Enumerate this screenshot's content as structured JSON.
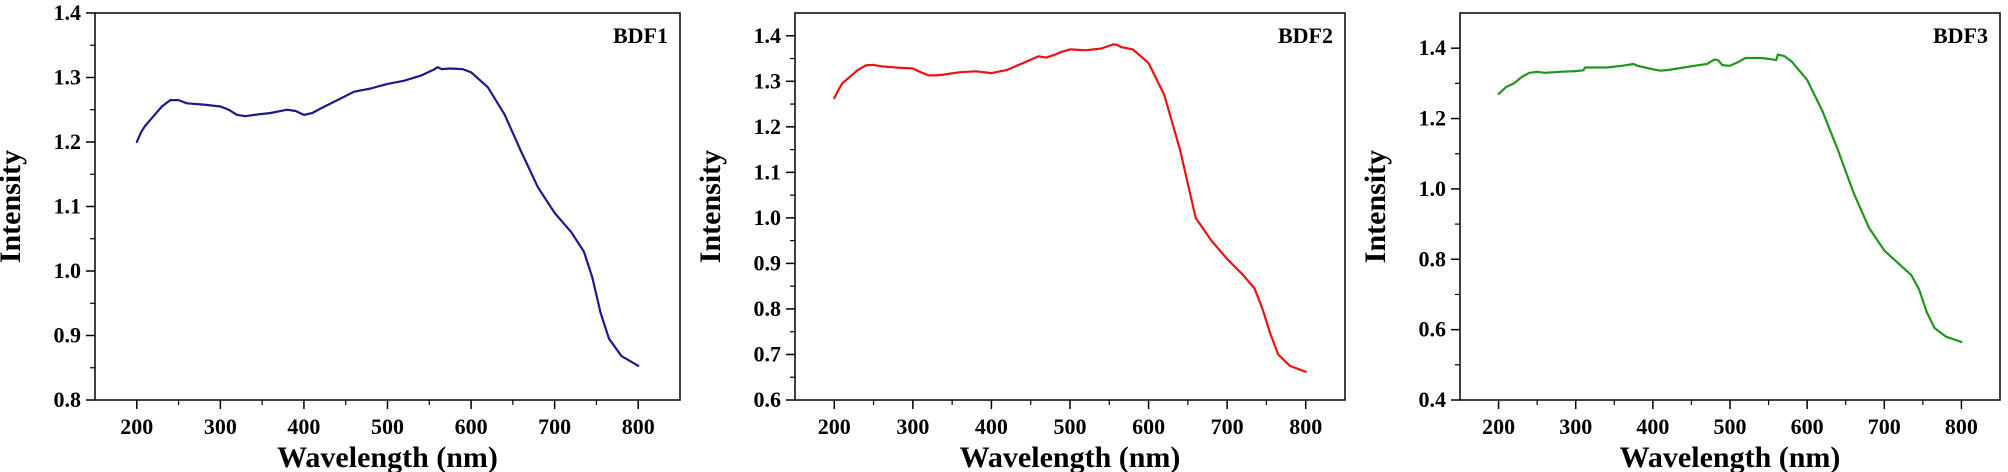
{
  "chart_data": [
    {
      "type": "line",
      "title": "",
      "legend": "BDF1",
      "xlabel": "Wavelength (nm)",
      "ylabel": "Intensity",
      "xlim": [
        150,
        850
      ],
      "ylim": [
        0.8,
        1.4
      ],
      "xticks": [
        200,
        300,
        400,
        500,
        600,
        700,
        800
      ],
      "yticks": [
        0.8,
        0.9,
        1.0,
        1.1,
        1.2,
        1.3,
        1.4
      ],
      "x_tick_labels": [
        "200",
        "300",
        "400",
        "500",
        "600",
        "700",
        "800"
      ],
      "y_tick_labels": [
        "0.8",
        "0.9",
        "1.0",
        "1.1",
        "1.2",
        "1.3",
        "1.4"
      ],
      "grid": false,
      "color": "#1a1a8c",
      "series": [
        {
          "x": [
            200,
            205,
            210,
            220,
            230,
            240,
            250,
            260,
            280,
            300,
            310,
            320,
            330,
            340,
            360,
            380,
            390,
            400,
            410,
            420,
            440,
            460,
            480,
            500,
            520,
            540,
            555,
            560,
            565,
            575,
            590,
            600,
            620,
            640,
            660,
            680,
            700,
            720,
            735,
            745,
            755,
            765,
            780,
            800
          ],
          "y": [
            1.2,
            1.215,
            1.225,
            1.24,
            1.255,
            1.265,
            1.265,
            1.26,
            1.258,
            1.255,
            1.25,
            1.242,
            1.24,
            1.242,
            1.245,
            1.25,
            1.248,
            1.242,
            1.245,
            1.252,
            1.265,
            1.278,
            1.283,
            1.29,
            1.295,
            1.303,
            1.312,
            1.316,
            1.313,
            1.314,
            1.313,
            1.308,
            1.285,
            1.243,
            1.185,
            1.13,
            1.09,
            1.06,
            1.03,
            0.99,
            0.935,
            0.895,
            0.868,
            0.853
          ]
        }
      ]
    },
    {
      "type": "line",
      "title": "",
      "legend": "BDF2",
      "xlabel": "Wavelength (nm)",
      "ylabel": "Intensity",
      "xlim": [
        150,
        850
      ],
      "ylim": [
        0.6,
        1.45
      ],
      "xticks": [
        200,
        300,
        400,
        500,
        600,
        700,
        800
      ],
      "yticks": [
        0.6,
        0.7,
        0.8,
        0.9,
        1.0,
        1.1,
        1.2,
        1.3,
        1.4
      ],
      "x_tick_labels": [
        "200",
        "300",
        "400",
        "500",
        "600",
        "700",
        "800"
      ],
      "y_tick_labels": [
        "0.6",
        "0.7",
        "0.8",
        "0.9",
        "1.0",
        "1.1",
        "1.2",
        "1.3",
        "1.4"
      ],
      "grid": false,
      "color": "#ee1111",
      "series": [
        {
          "x": [
            200,
            205,
            210,
            220,
            230,
            240,
            250,
            260,
            280,
            300,
            310,
            320,
            330,
            340,
            360,
            380,
            400,
            420,
            440,
            460,
            470,
            480,
            490,
            500,
            520,
            540,
            555,
            560,
            565,
            580,
            600,
            620,
            640,
            660,
            680,
            700,
            720,
            735,
            745,
            755,
            765,
            780,
            800
          ],
          "y": [
            1.263,
            1.28,
            1.295,
            1.31,
            1.325,
            1.335,
            1.336,
            1.333,
            1.33,
            1.328,
            1.32,
            1.313,
            1.313,
            1.315,
            1.32,
            1.322,
            1.318,
            1.325,
            1.34,
            1.355,
            1.352,
            1.358,
            1.365,
            1.37,
            1.368,
            1.372,
            1.381,
            1.38,
            1.375,
            1.37,
            1.34,
            1.27,
            1.15,
            1.0,
            0.95,
            0.91,
            0.875,
            0.845,
            0.8,
            0.745,
            0.7,
            0.675,
            0.662
          ]
        }
      ]
    },
    {
      "type": "line",
      "title": "",
      "legend": "BDF3",
      "xlabel": "Wavelength (nm)",
      "ylabel": "Intensity",
      "xlim": [
        150,
        850
      ],
      "ylim": [
        0.4,
        1.5
      ],
      "xticks": [
        200,
        300,
        400,
        500,
        600,
        700,
        800
      ],
      "yticks": [
        0.4,
        0.6,
        0.8,
        1.0,
        1.2,
        1.4
      ],
      "x_tick_labels": [
        "200",
        "300",
        "400",
        "500",
        "600",
        "700",
        "800"
      ],
      "y_tick_labels": [
        "0.4",
        "0.6",
        "0.8",
        "1.0",
        "1.2",
        "1.4"
      ],
      "grid": false,
      "color": "#1e961e",
      "series": [
        {
          "x": [
            200,
            205,
            210,
            220,
            230,
            240,
            250,
            260,
            280,
            300,
            310,
            312,
            320,
            340,
            360,
            375,
            380,
            390,
            400,
            410,
            420,
            440,
            460,
            470,
            480,
            485,
            490,
            500,
            510,
            520,
            540,
            555,
            560,
            562,
            565,
            570,
            580,
            600,
            620,
            640,
            660,
            680,
            700,
            720,
            735,
            745,
            755,
            765,
            780,
            800
          ],
          "y": [
            1.27,
            1.28,
            1.29,
            1.3,
            1.318,
            1.33,
            1.333,
            1.33,
            1.333,
            1.335,
            1.337,
            1.345,
            1.345,
            1.345,
            1.35,
            1.355,
            1.35,
            1.345,
            1.34,
            1.336,
            1.338,
            1.345,
            1.352,
            1.355,
            1.368,
            1.365,
            1.352,
            1.35,
            1.36,
            1.372,
            1.372,
            1.368,
            1.366,
            1.382,
            1.38,
            1.378,
            1.362,
            1.31,
            1.22,
            1.11,
            0.99,
            0.89,
            0.825,
            0.785,
            0.755,
            0.715,
            0.65,
            0.605,
            0.58,
            0.565
          ]
        }
      ]
    }
  ]
}
